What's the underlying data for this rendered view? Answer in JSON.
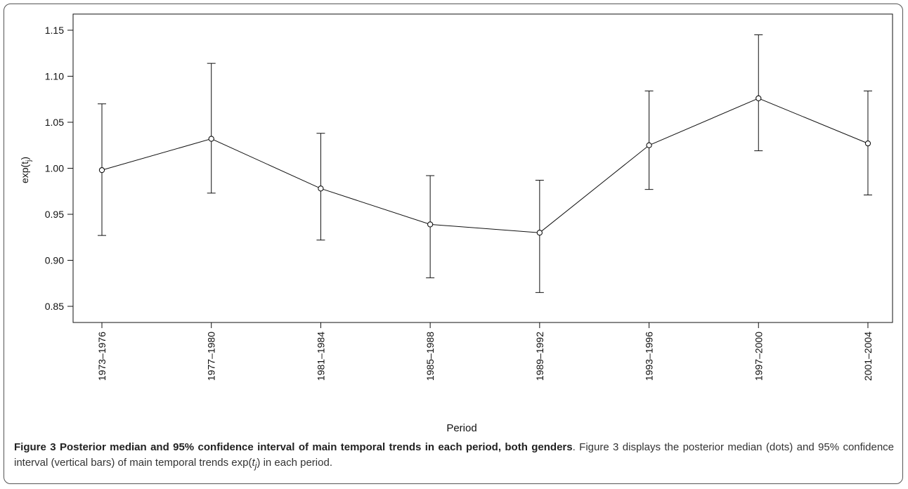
{
  "chart_data": {
    "type": "line",
    "title": "",
    "xlabel": "Period",
    "ylabel": "exp(t",
    "ylabel_subscript": "j",
    "ylabel_close": ")",
    "categories": [
      "1973–1976",
      "1977–1980",
      "1981–1984",
      "1985–1988",
      "1989–1992",
      "1993–1996",
      "1997–2000",
      "2001–2004"
    ],
    "series": [
      {
        "median": [
          0.998,
          1.032,
          0.978,
          0.939,
          0.93,
          1.025,
          1.076,
          1.027
        ],
        "lower": [
          0.927,
          0.973,
          0.922,
          0.881,
          0.865,
          0.977,
          1.019,
          0.971
        ],
        "upper": [
          1.07,
          1.114,
          1.038,
          0.992,
          0.987,
          1.084,
          1.145,
          1.084
        ]
      }
    ],
    "yticks": [
      "0.85",
      "0.90",
      "0.95",
      "1.00",
      "1.05",
      "1.10",
      "1.15"
    ],
    "ylim": [
      0.85,
      1.15
    ],
    "grid": false,
    "marker": "open-circle",
    "errorbars": "95% interval"
  },
  "caption": {
    "bold": "Figure 3 Posterior median and 95% confidence interval of main temporal trends in each period, both genders",
    "text_before": ". Figure 3 displays the posterior median (dots) and 95% confidence interval (vertical bars) of main temporal trends exp(",
    "italic": "t",
    "subscript": "j",
    "text_after": ") in each period."
  }
}
